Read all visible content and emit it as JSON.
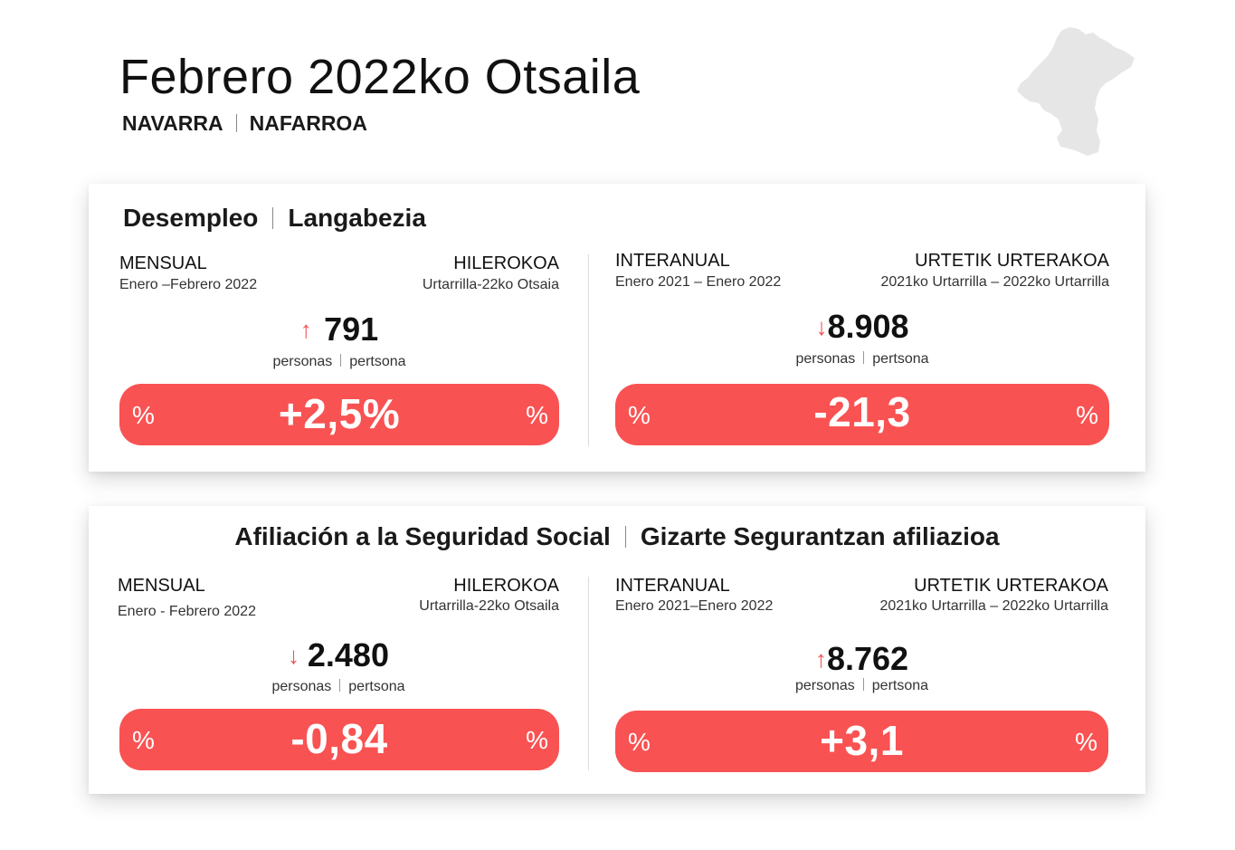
{
  "header": {
    "title": "Febrero 2022ko Otsaila",
    "region_es": "NAVARRA",
    "region_eu": "NAFARROA",
    "map_icon": "navarra-map-icon"
  },
  "colors": {
    "accent": "#f95252",
    "up_arrow": "#f05153",
    "down_arrow": "#f05153",
    "map_fill": "#e6e6e6"
  },
  "unemployment": {
    "title_es": "Desempleo",
    "title_eu": "Langabezia",
    "monthly": {
      "label_es": "MENSUAL",
      "label_eu": "HILEROKOA",
      "period_es": "Enero –Febrero 2022",
      "period_eu": "Urtarrilla-22ko Otsaia",
      "direction": "up",
      "arrow": "↑",
      "value": "791",
      "unit_es": "personas",
      "unit_eu": "pertsona",
      "pct_symbol": "%",
      "percent": "+2,5%"
    },
    "yearly": {
      "label_es": "INTERANUAL",
      "label_eu": "URTETIK URTERAKOA",
      "period_es": "Enero 2021 – Enero 2022",
      "period_eu": "2021ko Urtarrilla – 2022ko Urtarrilla",
      "direction": "down",
      "arrow": "↓",
      "value": "8.908",
      "unit_es": "personas",
      "unit_eu": "pertsona",
      "pct_symbol": "%",
      "percent": "-21,3"
    }
  },
  "social_security": {
    "title_es": "Afiliación a la Seguridad Social",
    "title_eu": "Gizarte Segurantzan afiliazioa",
    "monthly": {
      "label_es": "MENSUAL",
      "label_eu": "HILEROKOA",
      "period_es": "Enero - Febrero 2022",
      "period_eu": "Urtarrilla-22ko Otsaila",
      "direction": "down",
      "arrow": "↓",
      "value": "2.480",
      "unit_es": "personas",
      "unit_eu": "pertsona",
      "pct_symbol": "%",
      "percent": "-0,84"
    },
    "yearly": {
      "label_es": "INTERANUAL",
      "label_eu": "URTETIK URTERAKOA",
      "period_es": "Enero 2021–Enero 2022",
      "period_eu": "2021ko Urtarrilla – 2022ko Urtarrilla",
      "direction": "up",
      "arrow": "↑",
      "value": "8.762",
      "unit_es": "personas",
      "unit_eu": "pertsona",
      "pct_symbol": "%",
      "percent": "+3,1"
    }
  }
}
